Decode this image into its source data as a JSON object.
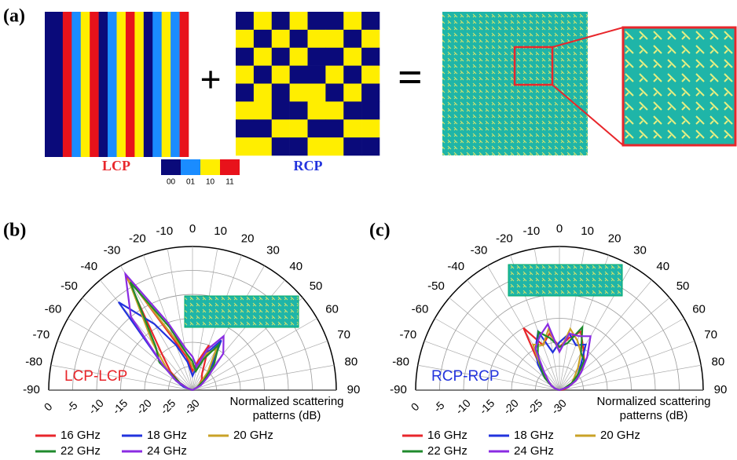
{
  "panel_a": {
    "label": "(a)",
    "plus": "+",
    "equals": "=",
    "lcp_label": "LCP",
    "rcp_label": "RCP",
    "code_labels": [
      "00",
      "01",
      "10",
      "11"
    ]
  },
  "chart_data": [
    {
      "type": "polar",
      "panel_label": "(b)",
      "annotation": "LCP-LCP",
      "annotation_color": "#e8262b",
      "axis_label": [
        "Normalized scattering",
        "patterns (dB)"
      ],
      "rlim": [
        -30,
        0
      ],
      "rticks": [
        0,
        -5,
        -10,
        -15,
        -20,
        -25,
        -30
      ],
      "thetaticks": [
        -90,
        -80,
        -70,
        -60,
        -50,
        -40,
        -30,
        -20,
        -10,
        0,
        10,
        20,
        30,
        40,
        50,
        60,
        70,
        80,
        90
      ],
      "theta": [
        -90,
        -80,
        -70,
        -60,
        -50,
        -40,
        -30,
        -20,
        -10,
        0,
        10,
        20,
        30,
        40,
        50,
        60,
        70,
        80,
        90
      ],
      "series": [
        {
          "name": "16 GHz",
          "color": "#e8262b",
          "values": [
            -30,
            -30,
            -29,
            -27,
            -24,
            -20,
            -2,
            -19,
            -23,
            -26,
            -24,
            -20,
            -26,
            -27,
            -28,
            -29,
            -30,
            -30,
            -30
          ]
        },
        {
          "name": "18 GHz",
          "color": "#2233dd",
          "values": [
            -30,
            -30,
            -28,
            -26,
            -22,
            -6,
            -14,
            -20,
            -24,
            -27,
            -25,
            -22,
            -18,
            -24,
            -27,
            -29,
            -30,
            -30,
            -30
          ]
        },
        {
          "name": "20 GHz",
          "color": "#c9a227",
          "values": [
            -30,
            -30,
            -29,
            -26,
            -23,
            -17,
            -3,
            -18,
            -22,
            -25,
            -26,
            -22,
            -20,
            -25,
            -28,
            -29,
            -30,
            -30,
            -30
          ]
        },
        {
          "name": "22 GHz",
          "color": "#1f8a2c",
          "values": [
            -30,
            -30,
            -29,
            -27,
            -21,
            -18,
            -4,
            -16,
            -22,
            -24,
            -26,
            -23,
            -19,
            -23,
            -27,
            -29,
            -30,
            -30,
            -30
          ]
        },
        {
          "name": "24 GHz",
          "color": "#8a2be2",
          "values": [
            -30,
            -30,
            -29,
            -26,
            -22,
            -10,
            -2,
            -15,
            -21,
            -23,
            -25,
            -21,
            -17,
            -20,
            -26,
            -28,
            -30,
            -30,
            -30
          ]
        }
      ]
    },
    {
      "type": "polar",
      "panel_label": "(c)",
      "annotation": "RCP-RCP",
      "annotation_color": "#2233dd",
      "axis_label": [
        "Normalized scattering",
        "patterns (dB)"
      ],
      "rlim": [
        -30,
        0
      ],
      "rticks": [
        0,
        -5,
        -10,
        -15,
        -20,
        -25,
        -30
      ],
      "thetaticks": [
        -90,
        -80,
        -70,
        -60,
        -50,
        -40,
        -30,
        -20,
        -10,
        0,
        10,
        20,
        30,
        40,
        50,
        60,
        70,
        80,
        90
      ],
      "theta": [
        -90,
        -80,
        -70,
        -60,
        -50,
        -40,
        -30,
        -20,
        -10,
        0,
        10,
        20,
        30,
        40,
        50,
        60,
        70,
        80,
        90
      ],
      "series": [
        {
          "name": "16 GHz",
          "color": "#e8262b",
          "values": [
            -30,
            -30,
            -29,
            -28,
            -26,
            -24,
            -15,
            -20,
            -18,
            -21,
            -19,
            -17,
            -20,
            -22,
            -24,
            -26,
            -28,
            -29,
            -30
          ]
        },
        {
          "name": "18 GHz",
          "color": "#2233dd",
          "values": [
            -30,
            -30,
            -29,
            -28,
            -26,
            -23,
            -20,
            -17,
            -22,
            -20,
            -18,
            -20,
            -19,
            -23,
            -25,
            -27,
            -28,
            -30,
            -30
          ]
        },
        {
          "name": "20 GHz",
          "color": "#c9a227",
          "values": [
            -30,
            -30,
            -29,
            -28,
            -27,
            -24,
            -19,
            -20,
            -17,
            -22,
            -17,
            -19,
            -21,
            -24,
            -26,
            -27,
            -29,
            -30,
            -30
          ]
        },
        {
          "name": "22 GHz",
          "color": "#1f8a2c",
          "values": [
            -30,
            -30,
            -29,
            -28,
            -26,
            -24,
            -21,
            -17,
            -19,
            -21,
            -20,
            -16,
            -21,
            -22,
            -25,
            -27,
            -29,
            -30,
            -30
          ]
        },
        {
          "name": "24 GHz",
          "color": "#8a2be2",
          "values": [
            -30,
            -30,
            -29,
            -28,
            -27,
            -25,
            -20,
            -18,
            -16,
            -22,
            -18,
            -18,
            -17,
            -21,
            -24,
            -26,
            -28,
            -30,
            -30
          ]
        }
      ]
    }
  ]
}
